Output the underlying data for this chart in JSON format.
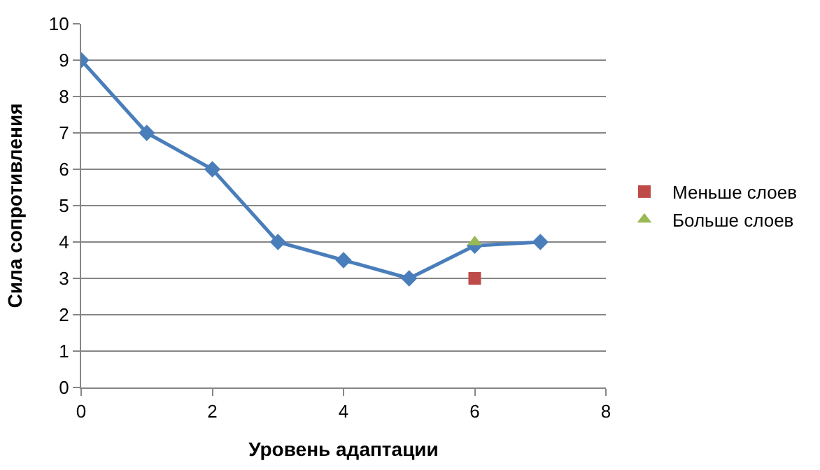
{
  "chart_data": {
    "type": "line",
    "xlabel": "Уровень адаптации",
    "ylabel": "Сила сопротивления",
    "xlim": [
      0,
      8
    ],
    "xticks": [
      0,
      2,
      4,
      6,
      8
    ],
    "ylim": [
      0,
      10
    ],
    "yticks": [
      0,
      1,
      2,
      3,
      4,
      5,
      6,
      7,
      8,
      9,
      10
    ],
    "grid": "y",
    "legend": "right",
    "series": [
      {
        "color": "#4a7ebb",
        "marker": "diamond",
        "x": [
          0,
          1,
          2,
          3,
          4,
          5,
          6,
          7
        ],
        "values": [
          9,
          7,
          6,
          4,
          3.5,
          3,
          3.9,
          4
        ]
      },
      {
        "type": "scatter",
        "name": "Меньше слоев",
        "color": "#be4b48",
        "marker": "square",
        "x": [
          6
        ],
        "values": [
          3
        ]
      },
      {
        "type": "scatter",
        "name": "Больше слоев",
        "color": "#98b954",
        "marker": "triangle",
        "x": [
          6
        ],
        "values": [
          4
        ]
      }
    ]
  }
}
